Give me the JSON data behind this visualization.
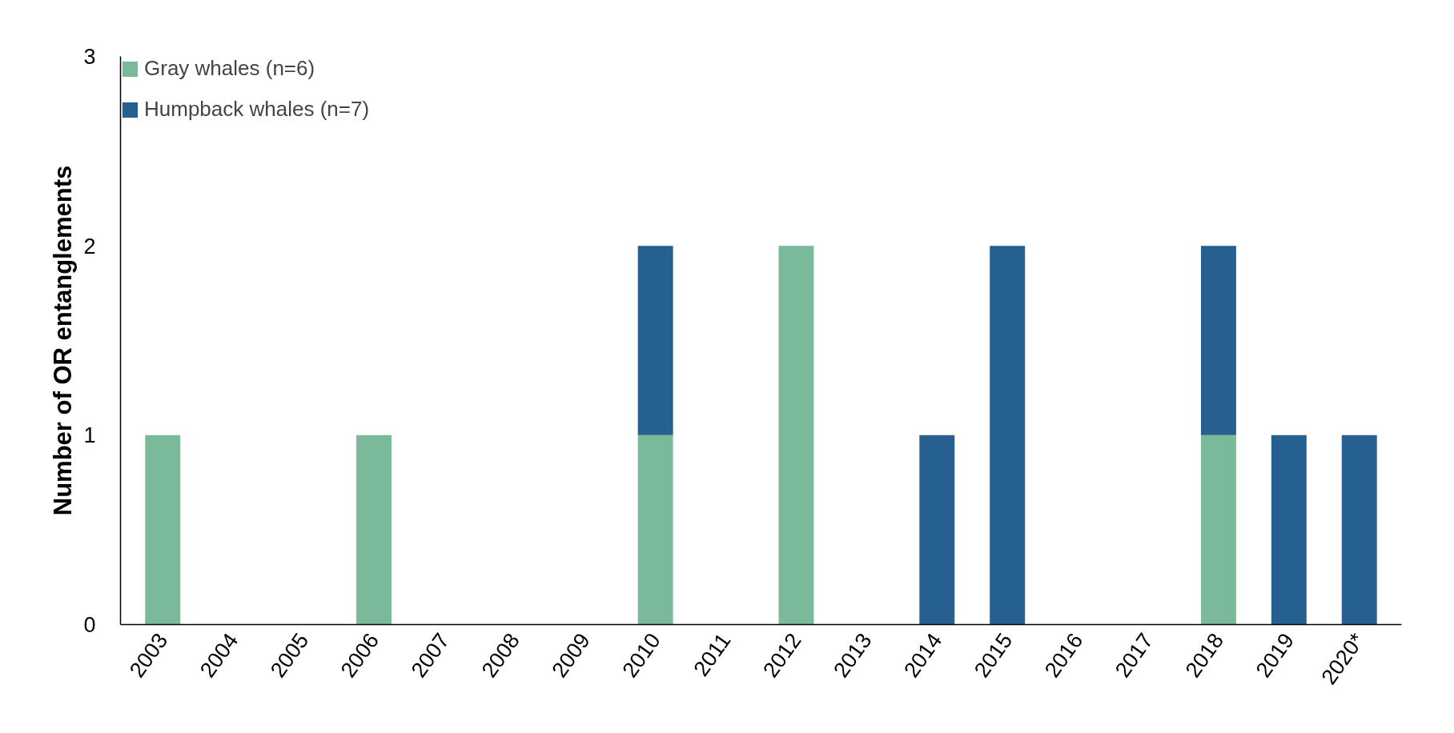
{
  "chart_data": {
    "type": "bar",
    "stacked": true,
    "ylabel": "Number of OR entanglements",
    "categories": [
      "2003",
      "2004",
      "2005",
      "2006",
      "2007",
      "2008",
      "2009",
      "2010",
      "2011",
      "2012",
      "2013",
      "2014",
      "2015",
      "2016",
      "2017",
      "2018",
      "2019",
      "2020*"
    ],
    "series": [
      {
        "name": "Gray whales (n=6)",
        "color": "#7ab99a",
        "values": [
          1,
          0,
          0,
          1,
          0,
          0,
          0,
          1,
          0,
          2,
          0,
          0,
          0,
          0,
          0,
          1,
          0,
          0
        ]
      },
      {
        "name": "Humpback whales (n=7)",
        "color": "#266090",
        "values": [
          0,
          0,
          0,
          0,
          0,
          0,
          0,
          1,
          0,
          0,
          0,
          1,
          2,
          0,
          0,
          1,
          1,
          1
        ]
      }
    ],
    "ylim": [
      0,
      3
    ],
    "yticks": [
      0,
      1,
      2,
      3
    ],
    "grid": false,
    "legend": "top left"
  }
}
